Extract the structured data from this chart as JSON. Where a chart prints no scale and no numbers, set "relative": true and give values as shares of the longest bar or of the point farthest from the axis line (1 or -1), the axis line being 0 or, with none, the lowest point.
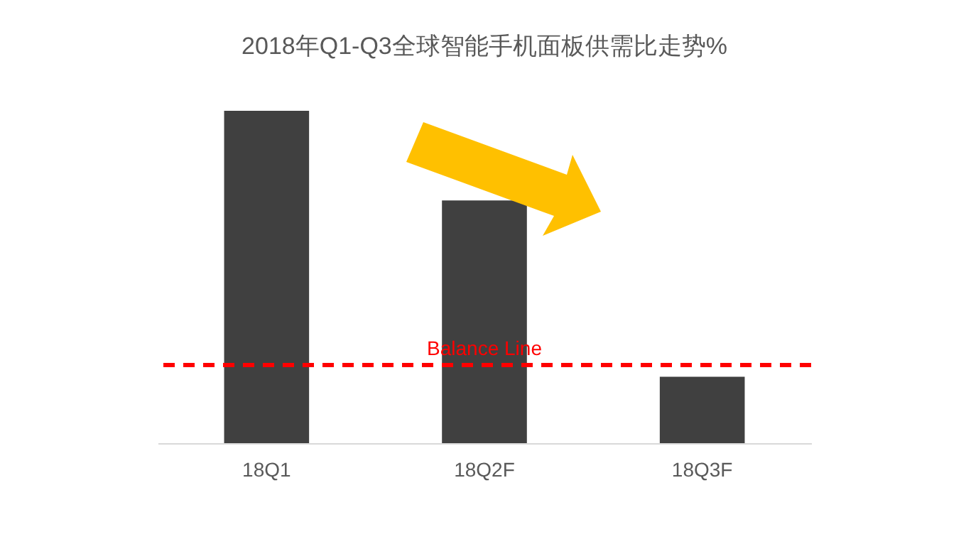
{
  "chart_data": {
    "type": "bar",
    "title": "2018年Q1-Q3全球智能手机面板供需比走势%",
    "categories": [
      "18Q1",
      "18Q2F",
      "18Q3F"
    ],
    "values": [
      1,
      0.73,
      0.2
    ],
    "color": "#404040",
    "relative": true,
    "grid": false,
    "ref_lines": [
      {
        "axis": "y",
        "value": 0.235,
        "label": "Balance Line",
        "color": "#ff0000",
        "line_style": "dashed"
      }
    ]
  }
}
